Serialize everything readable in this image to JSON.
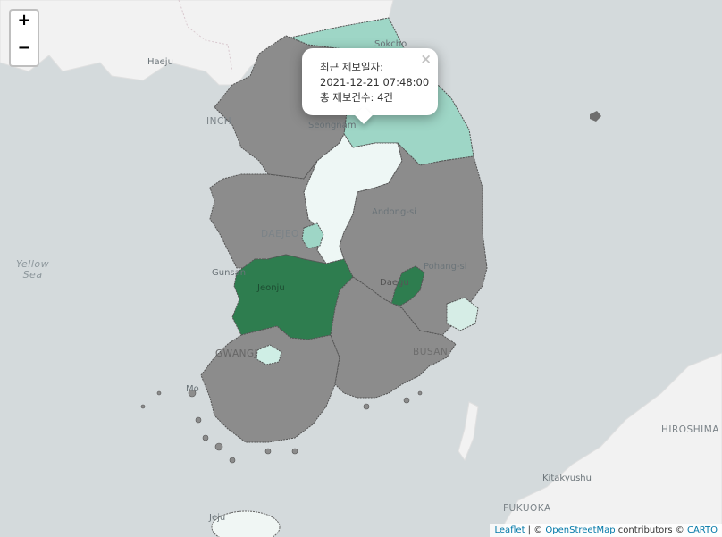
{
  "zoom": {
    "in_label": "+",
    "out_label": "−"
  },
  "popup": {
    "line1": "최근 제보일자:",
    "line2": "2021-12-21 07:48:00",
    "line3": "총 제보건수: 4건",
    "close_label": "×"
  },
  "labels": {
    "haeju": "Haeju",
    "incheon": "INCH",
    "seongnam": "Seongnam",
    "sokcho": "Sokcho",
    "andong": "Andong-si",
    "daejeon": "DAEJEO",
    "gunsan": "Gunsan",
    "jeonju": "Jeonju",
    "daegu": "Daegu",
    "pohang": "Pohang-si",
    "gwangju": "GWANGJ",
    "busan": "BUSAN",
    "mokpo": "Mo",
    "hiroshima": "HIROSHIMA",
    "kitakyushu": "Kitakyushu",
    "fukuoka": "FUKUOKA",
    "jeju": "Jeju",
    "yellow_sea_1": "Yellow",
    "yellow_sea_2": "Sea"
  },
  "attribution": {
    "leaflet": "Leaflet",
    "sep1": " | © ",
    "osm": "OpenStreetMap",
    "sep2": " contributors © ",
    "carto": "CARTO"
  },
  "colors": {
    "sea": "#d4dadc",
    "land": "#f2f2f2",
    "region_gray": "#8c8c8c",
    "region_dark_green": "#2e7d4f",
    "region_light_teal": "#9ed6c6",
    "region_pale": "#eef7f5"
  }
}
